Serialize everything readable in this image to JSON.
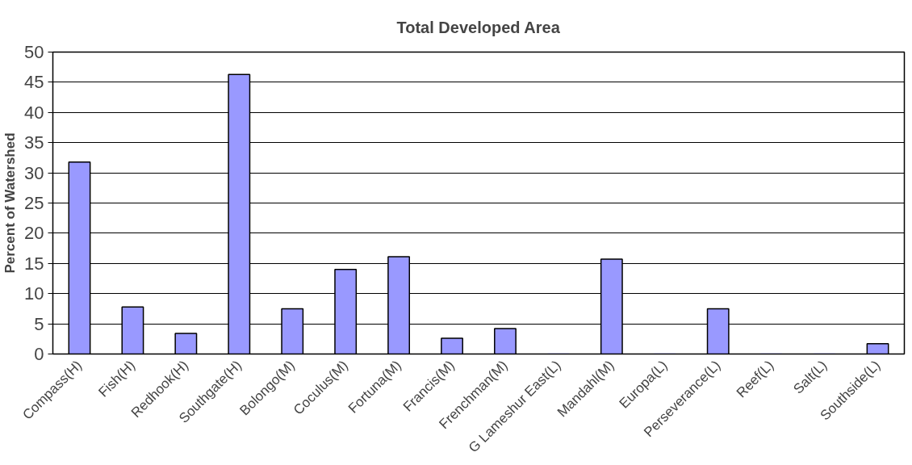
{
  "chart_data": {
    "type": "bar",
    "title": "Total Developed Area",
    "ylabel": "Percent of Watershed",
    "categories": [
      "Compass(H)",
      "Fish(H)",
      "Redhook(H)",
      "Southgate(H)",
      "Bolongo(M)",
      "Coculus(M)",
      "Fortuna(M)",
      "Francis(M)",
      "Frenchman(M)",
      "G Lameshur East(L)",
      "Mandahl(M)",
      "Europa(L)",
      "Perseverance(L)",
      "Reef(L)",
      "Salt(L)",
      "Southside(L)"
    ],
    "values": [
      31.8,
      7.8,
      3.4,
      46.3,
      7.5,
      14.0,
      16.1,
      2.6,
      4.2,
      0,
      15.7,
      0,
      7.5,
      0,
      0,
      1.7
    ],
    "color": "#9999ff",
    "ylim": [
      0,
      50
    ],
    "yticks": [
      0,
      5,
      10,
      15,
      20,
      25,
      30,
      35,
      40,
      45,
      50
    ],
    "grid": "y"
  }
}
